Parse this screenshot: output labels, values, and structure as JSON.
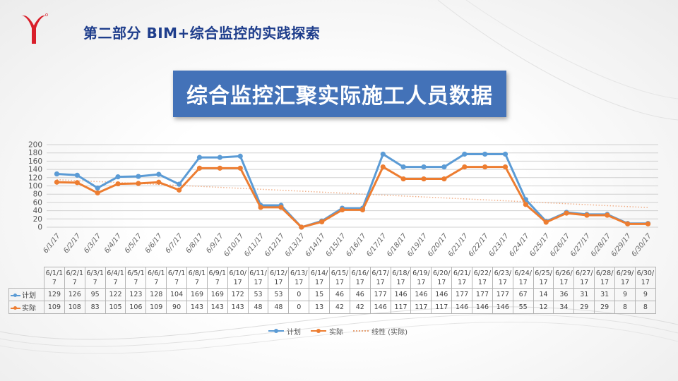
{
  "header": {
    "title": "第二部分  BIM+综合监控的实践探索"
  },
  "banner": {
    "title": "综合监控汇聚实际施工人员数据"
  },
  "colors": {
    "plan": "#5b9bd5",
    "actual": "#ed7d31",
    "trend": "#f0b08a",
    "banner": "#4372b8",
    "title": "#1f3e8c",
    "logo": "#d91f2a"
  },
  "chart_data": {
    "type": "line",
    "categories": [
      "6/1/17",
      "6/2/17",
      "6/3/17",
      "6/4/17",
      "6/5/17",
      "6/6/17",
      "6/7/17",
      "6/8/17",
      "6/9/17",
      "6/10/17",
      "6/11/17",
      "6/12/17",
      "6/13/17",
      "6/14/17",
      "6/15/17",
      "6/16/17",
      "6/17/17",
      "6/18/17",
      "6/19/17",
      "6/20/17",
      "6/21/17",
      "6/22/17",
      "6/23/17",
      "6/24/17",
      "6/25/17",
      "6/26/17",
      "6/27/17",
      "6/28/17",
      "6/29/17",
      "6/30/17"
    ],
    "table_headers": [
      "6/1/1\n7",
      "6/2/1\n7",
      "6/3/1\n7",
      "6/4/1\n7",
      "6/5/1\n7",
      "6/6/1\n7",
      "6/7/1\n7",
      "6/8/1\n7",
      "6/9/1\n7",
      "6/10/\n17",
      "6/11/\n17",
      "6/12/\n17",
      "6/13/\n17",
      "6/14/\n17",
      "6/15/\n17",
      "6/16/\n17",
      "6/17/\n17",
      "6/18/\n17",
      "6/19/\n17",
      "6/20/\n17",
      "6/21/\n17",
      "6/22/\n17",
      "6/23/\n17",
      "6/24/\n17",
      "6/25/\n17",
      "6/26/\n17",
      "6/27/\n17",
      "6/28/\n17",
      "6/29/\n17",
      "6/30/\n17"
    ],
    "series": [
      {
        "name": "计划",
        "color": "#5b9bd5",
        "values": [
          129,
          126,
          95,
          122,
          123,
          128,
          104,
          169,
          169,
          172,
          53,
          53,
          0,
          15,
          46,
          46,
          177,
          146,
          146,
          146,
          177,
          177,
          177,
          67,
          14,
          36,
          31,
          31,
          9,
          9
        ]
      },
      {
        "name": "实际",
        "color": "#ed7d31",
        "values": [
          109,
          108,
          83,
          105,
          106,
          109,
          90,
          143,
          143,
          143,
          48,
          48,
          0,
          13,
          42,
          42,
          146,
          117,
          117,
          117,
          146,
          146,
          146,
          55,
          12,
          34,
          29,
          29,
          8,
          8
        ]
      }
    ],
    "trendline": {
      "name": "线性 (实际)",
      "of_series": "实际",
      "type": "linear"
    },
    "yticks": [
      0,
      20,
      40,
      60,
      80,
      100,
      120,
      140,
      160,
      180,
      200
    ],
    "ylim": [
      0,
      200
    ],
    "grid": true,
    "legend_position": "bottom"
  }
}
